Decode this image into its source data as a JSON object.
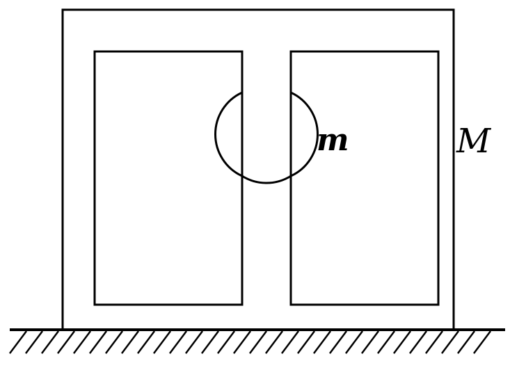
{
  "labels": {
    "small_mass": "m",
    "large_mass": "M"
  },
  "colors": {
    "stroke": "#000000",
    "background": "#ffffff"
  }
}
